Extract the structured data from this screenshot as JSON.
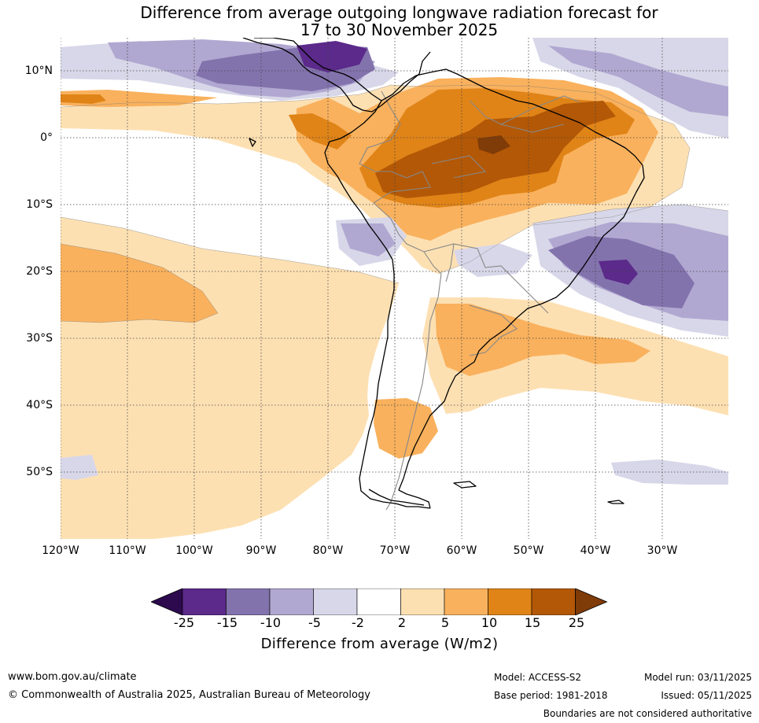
{
  "title": {
    "line1": "Difference from average outgoing longwave radiation forecast for",
    "line2": "17 to 30 November 2025"
  },
  "map": {
    "region": "South America",
    "lat_labels": [
      "10°N",
      "0°",
      "10°S",
      "20°S",
      "30°S",
      "40°S",
      "50°S"
    ],
    "lon_labels": [
      "120°W",
      "110°W",
      "100°W",
      "90°W",
      "80°W",
      "70°W",
      "60°W",
      "50°W",
      "40°W",
      "30°W"
    ]
  },
  "legend": {
    "title": "Difference from average (W/m2)",
    "tick_labels": [
      "-25",
      "-15",
      "-10",
      "-5",
      "-2",
      "2",
      "5",
      "10",
      "15",
      "25"
    ],
    "bins": [
      {
        "range": "< -25",
        "color": "#2d0a4e"
      },
      {
        "range": "-25 to -15",
        "color": "#5b2a8a"
      },
      {
        "range": "-15 to -10",
        "color": "#8373ad"
      },
      {
        "range": "-10 to -5",
        "color": "#b1a8d1"
      },
      {
        "range": "-5 to -2",
        "color": "#d8d7e9"
      },
      {
        "range": "-2 to 2",
        "color": "#ffffff"
      },
      {
        "range": "2 to 5",
        "color": "#fde0b2"
      },
      {
        "range": "5 to 10",
        "color": "#f9b15d"
      },
      {
        "range": "10 to 15",
        "color": "#e08418"
      },
      {
        "range": "15 to 25",
        "color": "#b35806"
      },
      {
        "range": "> 25",
        "color": "#7f3b08"
      }
    ]
  },
  "footer": {
    "website": "www.bom.gov.au/climate",
    "copyright": "© Commonwealth of Australia 2025, Australian Bureau of Meteorology",
    "model": "Model: ACCESS-S2",
    "base_period": "Base period: 1981-2018",
    "model_run": "Model run: 03/11/2025",
    "issued": "Issued: 05/11/2025",
    "disclaimer": "Boundaries are not considered authoritative"
  }
}
